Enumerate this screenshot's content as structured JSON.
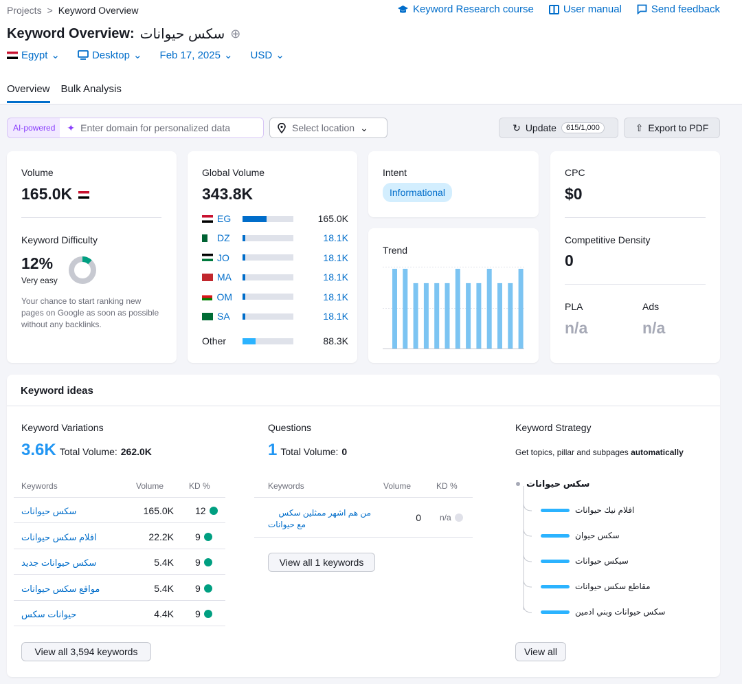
{
  "breadcrumb": {
    "root": "Projects",
    "sep": ">",
    "current": "Keyword Overview"
  },
  "top_links": {
    "course": "Keyword Research course",
    "manual": "User manual",
    "feedback": "Send feedback"
  },
  "title": {
    "prefix": "Keyword Overview:",
    "keyword": "سكس حيوانات"
  },
  "filters": {
    "country": "Egypt",
    "device": "Desktop",
    "date": "Feb 17, 2025",
    "currency": "USD"
  },
  "tabs": [
    "Overview",
    "Bulk Analysis"
  ],
  "toolbar": {
    "ai_label": "AI-powered",
    "domain_placeholder": "Enter domain for personalized data",
    "location": "Select location",
    "update": "Update",
    "update_count": "615/1,000",
    "export": "Export to PDF"
  },
  "volume": {
    "label": "Volume",
    "value": "165.0K"
  },
  "difficulty": {
    "label": "Keyword Difficulty",
    "value": "12%",
    "level": "Very easy",
    "percent": 12,
    "desc": "Your chance to start ranking new pages on Google as soon as possible without any backlinks."
  },
  "global_volume": {
    "label": "Global Volume",
    "value": "343.8K",
    "countries": [
      {
        "code": "EG",
        "value": "165.0K",
        "fraction": 0.47
      },
      {
        "code": "DZ",
        "value": "18.1K",
        "fraction": 0.05
      },
      {
        "code": "JO",
        "value": "18.1K",
        "fraction": 0.05
      },
      {
        "code": "MA",
        "value": "18.1K",
        "fraction": 0.05
      },
      {
        "code": "OM",
        "value": "18.1K",
        "fraction": 0.05
      },
      {
        "code": "SA",
        "value": "18.1K",
        "fraction": 0.05
      }
    ],
    "other": {
      "label": "Other",
      "value": "88.3K",
      "fraction": 0.26
    }
  },
  "intent": {
    "label": "Intent",
    "value": "Informational"
  },
  "trend": {
    "label": "Trend",
    "values": [
      100,
      100,
      82,
      82,
      82,
      82,
      100,
      82,
      82,
      100,
      82,
      82,
      100
    ]
  },
  "cpc": {
    "label": "CPC",
    "value": "$0"
  },
  "density": {
    "label": "Competitive Density",
    "value": "0"
  },
  "pla": {
    "label": "PLA",
    "value": "n/a"
  },
  "ads": {
    "label": "Ads",
    "value": "n/a"
  },
  "keyword_ideas": {
    "title": "Keyword ideas",
    "variations": {
      "label": "Keyword Variations",
      "count": "3.6K",
      "total_label": "Total Volume:",
      "total": "262.0K",
      "headers": [
        "Keywords",
        "Volume",
        "KD %"
      ],
      "rows": [
        {
          "kw": "سكس حيوانات",
          "vol": "165.0K",
          "kd": "12"
        },
        {
          "kw": "افلام سكس حيوانات",
          "vol": "22.2K",
          "kd": "9"
        },
        {
          "kw": "سكس حيوانات جديد",
          "vol": "5.4K",
          "kd": "9"
        },
        {
          "kw": "مواقع سكس حيوانات",
          "vol": "5.4K",
          "kd": "9"
        },
        {
          "kw": "حيوانات سكس",
          "vol": "4.4K",
          "kd": "9"
        }
      ],
      "button": "View all 3,594 keywords"
    },
    "questions": {
      "label": "Questions",
      "count": "1",
      "total_label": "Total Volume:",
      "total": "0",
      "headers": [
        "Keywords",
        "Volume",
        "KD %"
      ],
      "rows": [
        {
          "kw_line1": "من هم اشهر ممثلين سكس",
          "kw_line2": "مع حيوانات",
          "vol": "0",
          "kd": "n/a"
        }
      ],
      "button": "View all 1 keywords"
    },
    "strategy": {
      "label": "Keyword Strategy",
      "desc": "Get topics, pillar and subpages",
      "desc_bold": "automatically",
      "root": "سكس حيوانات",
      "items": [
        "افلام نيك حيوانات",
        "سكس حيوان",
        "سيكس حيوانات",
        "مقاطع سكس حيوانات",
        "سكس حيوانات وبني ادمين"
      ],
      "button": "View all"
    }
  }
}
